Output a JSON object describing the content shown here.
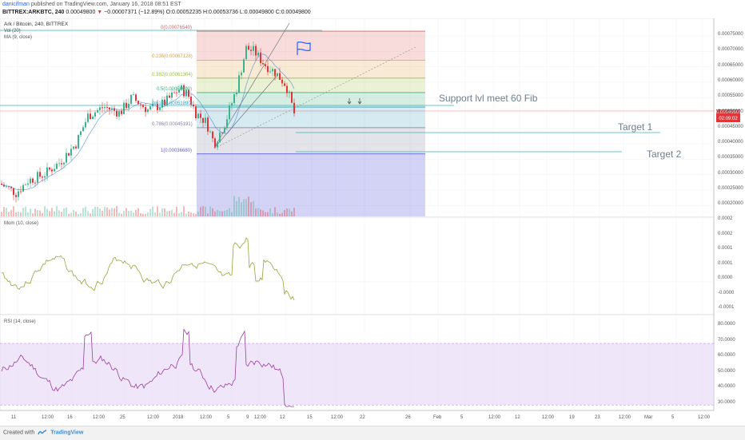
{
  "header": {
    "author": "danicifman",
    "published": "published on TradingView.com, January 16, 2018 08:51 EST",
    "symbol": "BITTREX:ARKBTC, 240",
    "last": "0.00049800",
    "change": "−0.00007371 (−12.89%)",
    "open": "O:0.00052235",
    "high": "H:0.00053736",
    "low": "L:0.00049800",
    "close": "C:0.00049800"
  },
  "main_pane": {
    "title": "Ark / Bitcoin, 240, BITTREX",
    "vol_label": "Vol (20)",
    "ma_label": "MA (9, close)",
    "price_axis": [
      "0.00075000",
      "0.00070000",
      "0.00065000",
      "0.00060000",
      "0.00055000",
      "0.00050000",
      "0.00045000",
      "0.00040000",
      "0.00035000",
      "0.00030000",
      "0.00025000",
      "0.00020000"
    ],
    "price_tags": {
      "last": "0.00049800",
      "countdown": "02:09:02"
    }
  },
  "fib": {
    "levels": [
      {
        "label": "0(0.00076540)",
        "price": 0.0007654
      },
      {
        "label": "0.236(0.00067128)",
        "price": 0.00067128
      },
      {
        "label": "0.382(0.00061304)",
        "price": 0.00061304
      },
      {
        "label": "0.5(0.00056600)",
        "price": 0.000566
      },
      {
        "label": "0.618(0.00051890)",
        "price": 0.0005189
      },
      {
        "label": "0.786(0.00045191)",
        "price": 0.00045191
      },
      {
        "label": "1(0.00036680)",
        "price": 0.0003668
      }
    ],
    "colors": [
      "#e06060",
      "#e0a040",
      "#a0c040",
      "#40b080",
      "#40a0c0",
      "#8080a0",
      "#6060e0"
    ]
  },
  "annotations": {
    "support": "Support lvl meet 60 Fib",
    "target1": "Target 1",
    "target2": "Target 2"
  },
  "mom_pane": {
    "title": "Mom (10, close)",
    "axis": [
      "0.0002",
      "0.0002",
      "0.0001",
      "0.0001",
      "0.0000",
      "-0.0000",
      "-0.0001"
    ]
  },
  "rsi_pane": {
    "title": "RSI (14, close)",
    "axis": [
      "80.0000",
      "70.0000",
      "60.0000",
      "50.0000",
      "40.0000",
      "30.0000"
    ],
    "band": [
      30,
      70
    ]
  },
  "time_axis": [
    "11",
    "12:00",
    "16",
    "12:00",
    "25",
    "12:00",
    "2018",
    "12:00",
    "5",
    "9",
    "12:00",
    "12",
    "15",
    "12:00",
    "22",
    "26",
    "Feb",
    "5",
    "12:00",
    "12",
    "12:00",
    "19",
    "23",
    "12:00",
    "Mar",
    "5",
    "12:00",
    "12"
  ],
  "footer": {
    "created_with": "Created with",
    "brand": "TradingView"
  },
  "colors": {
    "up": "#3cb38d",
    "down": "#e0363a",
    "mom_line": "#9aa33a",
    "rsi_line": "#9b3f9e",
    "rsi_band": "#e8dcf8"
  }
}
